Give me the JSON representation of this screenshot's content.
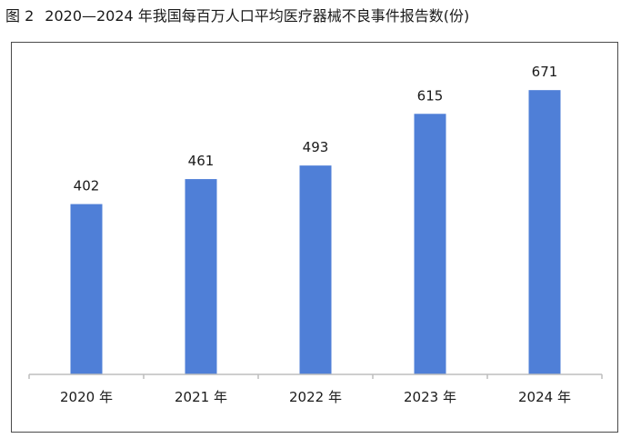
{
  "figure": {
    "number": "图 2",
    "title": "2020—2024 年我国每百万人口平均医疗器械不良事件报告数(份)"
  },
  "colors": {
    "bar": "#4f7fd7",
    "axis": "#bdbdbd",
    "frame": "#4a4a4a",
    "text": "#1a1a1a"
  },
  "chart_data": {
    "type": "bar",
    "title": "2020—2024 年我国每百万人口平均医疗器械不良事件报告数(份)",
    "categories": [
      "2020 年",
      "2021 年",
      "2022 年",
      "2023 年",
      "2024 年"
    ],
    "values": [
      402,
      461,
      493,
      615,
      671
    ],
    "data_labels": [
      "402",
      "461",
      "493",
      "615",
      "671"
    ],
    "xlabel": "",
    "ylabel": "",
    "ylim": [
      0,
      740
    ],
    "grid": false,
    "legend": "none"
  }
}
